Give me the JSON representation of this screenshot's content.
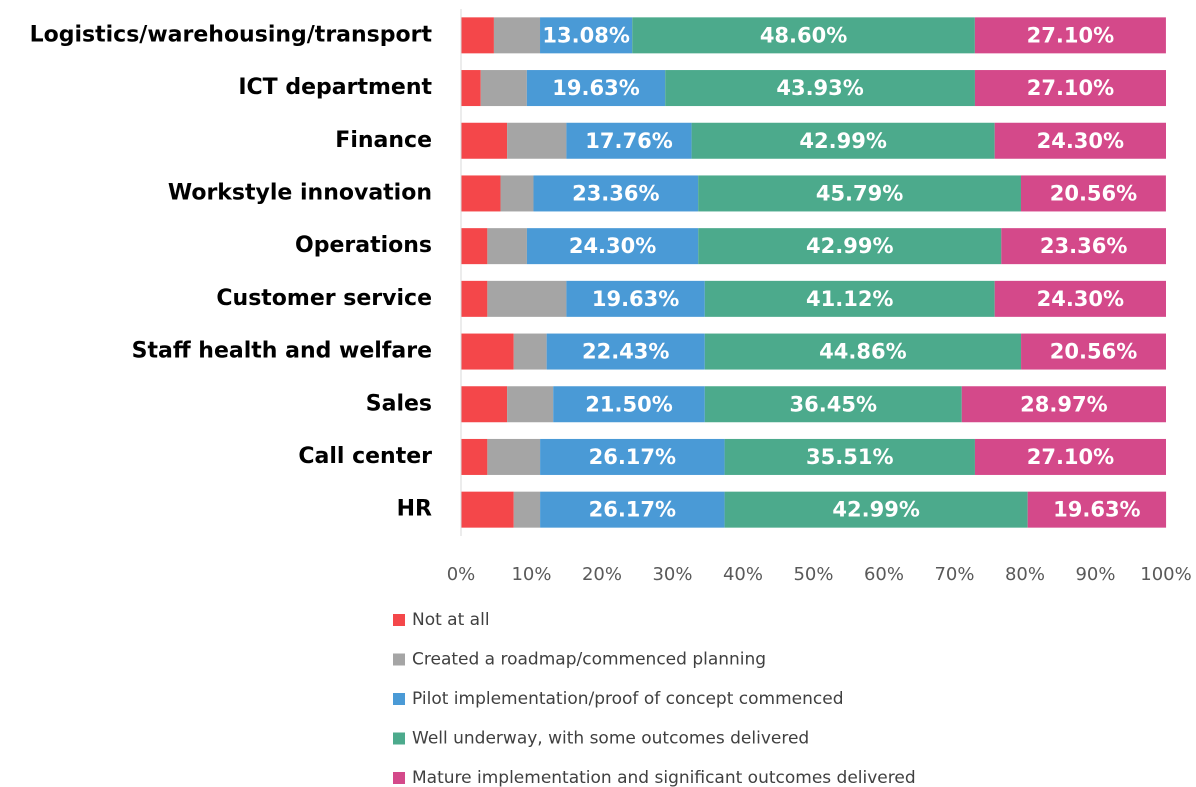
{
  "chart_data": {
    "type": "stacked_bar_horizontal",
    "categories": [
      "Logistics/warehousing/transport",
      "ICT department",
      "Finance",
      "Workstyle innovation",
      "Operations",
      "Customer service",
      "Staff health and welfare",
      "Sales",
      "Call center",
      "HR"
    ],
    "series": [
      {
        "name": "Not at all",
        "color": "#f4474a",
        "values": [
          4.67,
          2.8,
          6.54,
          5.61,
          3.74,
          3.74,
          7.48,
          6.54,
          3.74,
          7.48
        ]
      },
      {
        "name": "Created a roadmap/commenced planning",
        "color": "#a5a5a5",
        "values": [
          6.54,
          6.54,
          8.41,
          4.67,
          5.61,
          11.21,
          4.67,
          6.54,
          7.48,
          3.74
        ]
      },
      {
        "name": "Pilot implementation/proof of concept commenced",
        "color": "#4a9ad6",
        "values": [
          13.08,
          19.63,
          17.76,
          23.36,
          24.3,
          19.63,
          22.43,
          21.5,
          26.17,
          26.17
        ],
        "value_labels": [
          "13.08%",
          "19.63%",
          "17.76%",
          "23.36%",
          "24.30%",
          "19.63%",
          "22.43%",
          "21.50%",
          "26.17%",
          "26.17%"
        ]
      },
      {
        "name": "Well underway, with some outcomes delivered",
        "color": "#4caa8c",
        "values": [
          48.6,
          43.93,
          42.99,
          45.79,
          42.99,
          41.12,
          44.86,
          36.45,
          35.51,
          42.99
        ],
        "value_labels": [
          "48.60%",
          "43.93%",
          "42.99%",
          "45.79%",
          "42.99%",
          "41.12%",
          "44.86%",
          "36.45%",
          "35.51%",
          "42.99%"
        ]
      },
      {
        "name": "Mature implementation and significant outcomes delivered",
        "color": "#d4498a",
        "values": [
          27.1,
          27.1,
          24.3,
          20.56,
          23.36,
          24.3,
          20.56,
          28.97,
          27.1,
          19.63
        ],
        "value_labels": [
          "27.10%",
          "27.10%",
          "24.30%",
          "20.56%",
          "23.36%",
          "24.30%",
          "20.56%",
          "28.97%",
          "27.10%",
          "19.63%"
        ]
      }
    ],
    "xlim": [
      0,
      100
    ],
    "xticks": [
      {
        "value": 0,
        "label": "0%"
      },
      {
        "value": 10,
        "label": "10%"
      },
      {
        "value": 20,
        "label": "20%"
      },
      {
        "value": 30,
        "label": "30%"
      },
      {
        "value": 40,
        "label": "40%"
      },
      {
        "value": 50,
        "label": "50%"
      },
      {
        "value": 60,
        "label": "60%"
      },
      {
        "value": 70,
        "label": "70%"
      },
      {
        "value": 80,
        "label": "80%"
      },
      {
        "value": 90,
        "label": "90%"
      },
      {
        "value": 100,
        "label": "100%"
      }
    ],
    "legend": "bottom"
  }
}
